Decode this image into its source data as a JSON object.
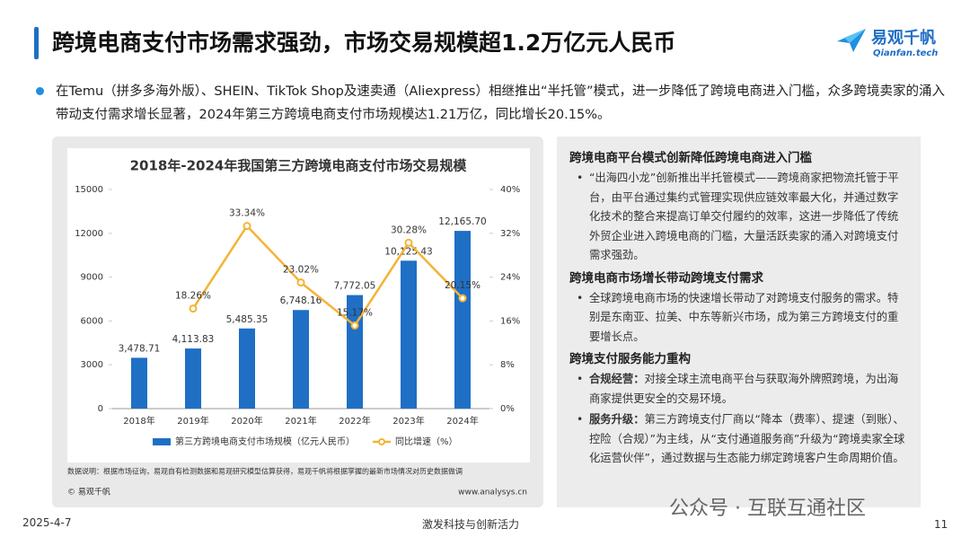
{
  "slide_title": "跨境电商支付市场需求强劲，市场交易规模超1.2万亿元人民币",
  "logo": {
    "name": "易观千帆",
    "url": "Qianfan.tech"
  },
  "intro": "在Temu（拼多多海外版）、SHEIN、TikTok Shop及速卖通（Aliexpress）相继推出“半托管”模式，进一步降低了跨境电商进入门槛，众多跨境卖家的涌入带动支付需求增长显著，2024年第三方跨境电商支付市场规模达1.21万亿，同比增长20.15%。",
  "chart_data": {
    "type": "bar",
    "title": "2018年-2024年我国第三方跨境电商支付市场交易规模",
    "categories": [
      "2018年",
      "2019年",
      "2020年",
      "2021年",
      "2022年",
      "2023年",
      "2024年"
    ],
    "series": [
      {
        "name": "第三方跨境电商支付市场规模（亿元人民币）",
        "type": "bar",
        "color": "#1f6fc5",
        "values": [
          3478.71,
          4113.83,
          5485.35,
          6748.16,
          7772.05,
          10125.43,
          12165.7
        ],
        "value_labels": [
          "3,478.71",
          "4,113.83",
          "5,485.35",
          "6,748.16",
          "7,772.05",
          "10,125.43",
          "12,165.70"
        ]
      },
      {
        "name": "同比增速（%）",
        "type": "line",
        "axis": "y2",
        "color": "#f5b335",
        "values": [
          null,
          18.26,
          33.34,
          23.02,
          15.17,
          30.28,
          20.15
        ],
        "value_labels": [
          null,
          "18.26%",
          "33.34%",
          "23.02%",
          "15.17%",
          "30.28%",
          "20.15%"
        ]
      }
    ],
    "ylim": [
      0,
      15000
    ],
    "yticks": [
      0,
      3000,
      6000,
      9000,
      12000,
      15000
    ],
    "y2lim": [
      0,
      40
    ],
    "y2ticks": [
      {
        "value": 0,
        "label": "0%"
      },
      {
        "value": 8,
        "label": "8%"
      },
      {
        "value": 16,
        "label": "16%"
      },
      {
        "value": 24,
        "label": "24%"
      },
      {
        "value": 32,
        "label": "32%"
      },
      {
        "value": 40,
        "label": "40%"
      }
    ],
    "grid": false,
    "legend": "bottom",
    "note": "数据说明：根据市场征询，易观自有检测数据和易观研究模型估算获得，易观千帆将根据掌握的最新市场情况对历史数据做调",
    "source": "© 易观千帆",
    "site": "www.analysys.cn"
  },
  "panel": {
    "sections": [
      {
        "heading": "跨境电商平台模式创新降低跨境电商进入门槛",
        "bullets": [
          {
            "text": "“出海四小龙”创新推出半托管模式——跨境商家把物流托管于平台，由平台通过集约式管理实现供应链效率最大化，并通过数字化技术的整合来提高订单交付履约的效率，这进一步降低了传统外贸企业进入跨境电商的门槛，大量活跃卖家的涌入对跨境支付需求强劲。"
          }
        ]
      },
      {
        "heading": "跨境电商市场增长带动跨境支付需求",
        "bullets": [
          {
            "text": "全球跨境电商市场的快速增长带动了对跨境支付服务的需求。特别是东南亚、拉美、中东等新兴市场，成为第三方跨境支付的重要增长点。"
          }
        ]
      },
      {
        "heading": "跨境支付服务能力重构",
        "bullets": [
          {
            "label": "合规经营：",
            "text": "对接全球主流电商平台与获取海外牌照跨境，为出海商家提供更安全的交易环境。"
          },
          {
            "label": "服务升级：",
            "text": "第三方跨境支付厂商以“降本（费率）、提速（到账）、控险（合规）”为主线，从“支付通道服务商”升级为“跨境卖家全球化运营伙伴”，通过数据与生态能力绑定跨境客户生命周期价值。"
          }
        ]
      }
    ]
  },
  "footer": {
    "date": "2025-4-7",
    "slogan": "激发科技与创新活力",
    "page": "11",
    "watermark": "公众号 · 互联互通社区"
  }
}
